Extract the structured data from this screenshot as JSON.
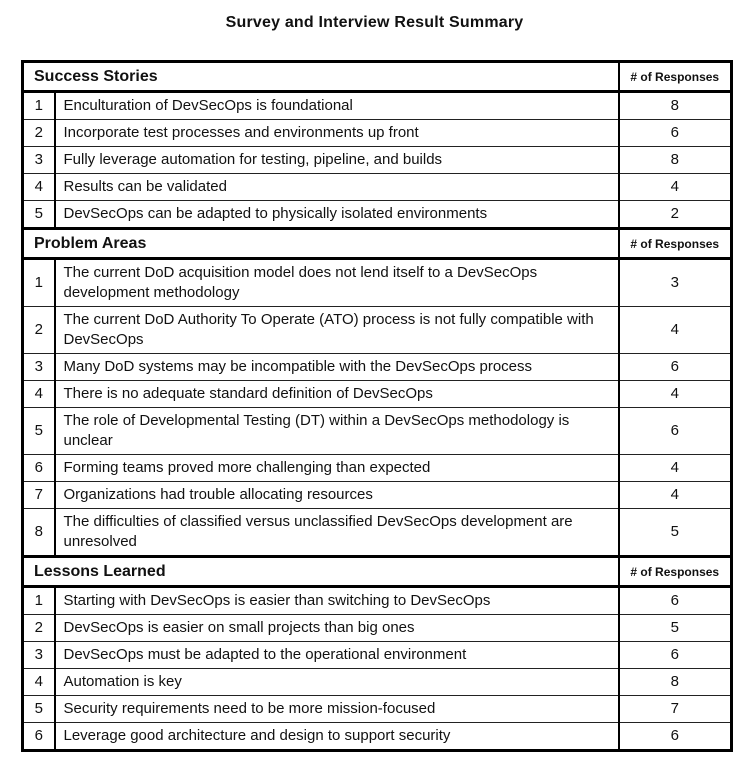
{
  "page_title": "Survey and Interview Result Summary",
  "responses_header": "# of Responses",
  "sections": [
    {
      "title": "Success Stories",
      "rows": [
        {
          "num": "1",
          "text": "Enculturation of DevSecOps is foundational",
          "responses": "8"
        },
        {
          "num": "2",
          "text": "Incorporate test processes and environments up front",
          "responses": "6"
        },
        {
          "num": "3",
          "text": "Fully leverage automation for testing, pipeline, and builds",
          "responses": "8"
        },
        {
          "num": "4",
          "text": "Results can be validated",
          "responses": "4"
        },
        {
          "num": "5",
          "text": "DevSecOps can be adapted to physically isolated environments",
          "responses": "2"
        }
      ]
    },
    {
      "title": "Problem Areas",
      "rows": [
        {
          "num": "1",
          "text": "The current DoD acquisition model does not lend itself to a DevSecOps development methodology",
          "responses": "3"
        },
        {
          "num": "2",
          "text": "The current DoD Authority To Operate (ATO) process is not fully compatible with DevSecOps",
          "responses": "4"
        },
        {
          "num": "3",
          "text": "Many DoD systems may be incompatible with the DevSecOps process",
          "responses": "6"
        },
        {
          "num": "4",
          "text": "There is no adequate standard definition of DevSecOps",
          "responses": "4"
        },
        {
          "num": "5",
          "text": "The role of Developmental Testing (DT) within a DevSecOps methodology is unclear",
          "responses": "6"
        },
        {
          "num": "6",
          "text": "Forming teams proved more challenging than expected",
          "responses": "4"
        },
        {
          "num": "7",
          "text": "Organizations had trouble allocating resources",
          "responses": "4"
        },
        {
          "num": "8",
          "text": "The difficulties of classified versus unclassified DevSecOps development are unresolved",
          "responses": "5"
        }
      ]
    },
    {
      "title": "Lessons Learned",
      "rows": [
        {
          "num": "1",
          "text": "Starting with DevSecOps is easier than switching to DevSecOps",
          "responses": "6"
        },
        {
          "num": "2",
          "text": "DevSecOps is easier on small projects than big ones",
          "responses": "5"
        },
        {
          "num": "3",
          "text": "DevSecOps must be adapted to the operational environment",
          "responses": "6"
        },
        {
          "num": "4",
          "text": "Automation is key",
          "responses": "8"
        },
        {
          "num": "5",
          "text": "Security requirements need to be more mission-focused",
          "responses": "7"
        },
        {
          "num": "6",
          "text": "Leverage good architecture and design to support security",
          "responses": "6"
        }
      ]
    }
  ]
}
